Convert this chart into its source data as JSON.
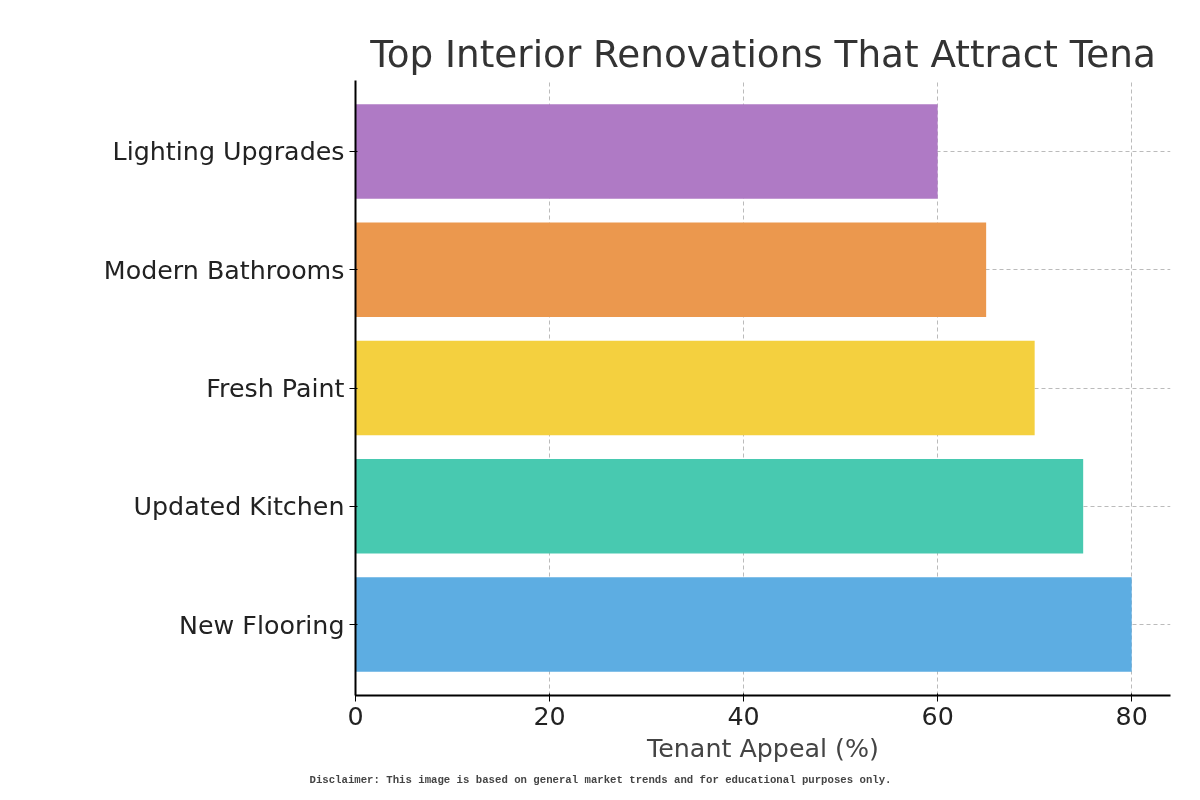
{
  "chart_data": {
    "type": "bar",
    "orientation": "horizontal",
    "title": "Top Interior Renovations That Attract Tena",
    "xlabel": "Tenant Appeal (%)",
    "categories": [
      "Lighting Upgrades",
      "Modern Bathrooms",
      "Fresh Paint",
      "Updated Kitchen",
      "New Flooring"
    ],
    "values": [
      60,
      65,
      70,
      75,
      80
    ],
    "colors": [
      "#af7ac5",
      "#eb984e",
      "#f4d03f",
      "#48c9b0",
      "#5dade2"
    ],
    "xlim": [
      0,
      84
    ],
    "xticks": [
      0,
      20,
      40,
      60,
      80
    ],
    "grid": true,
    "annotations": [
      "Disclaimer: This image is based on general market trends and for educational purposes only."
    ]
  }
}
